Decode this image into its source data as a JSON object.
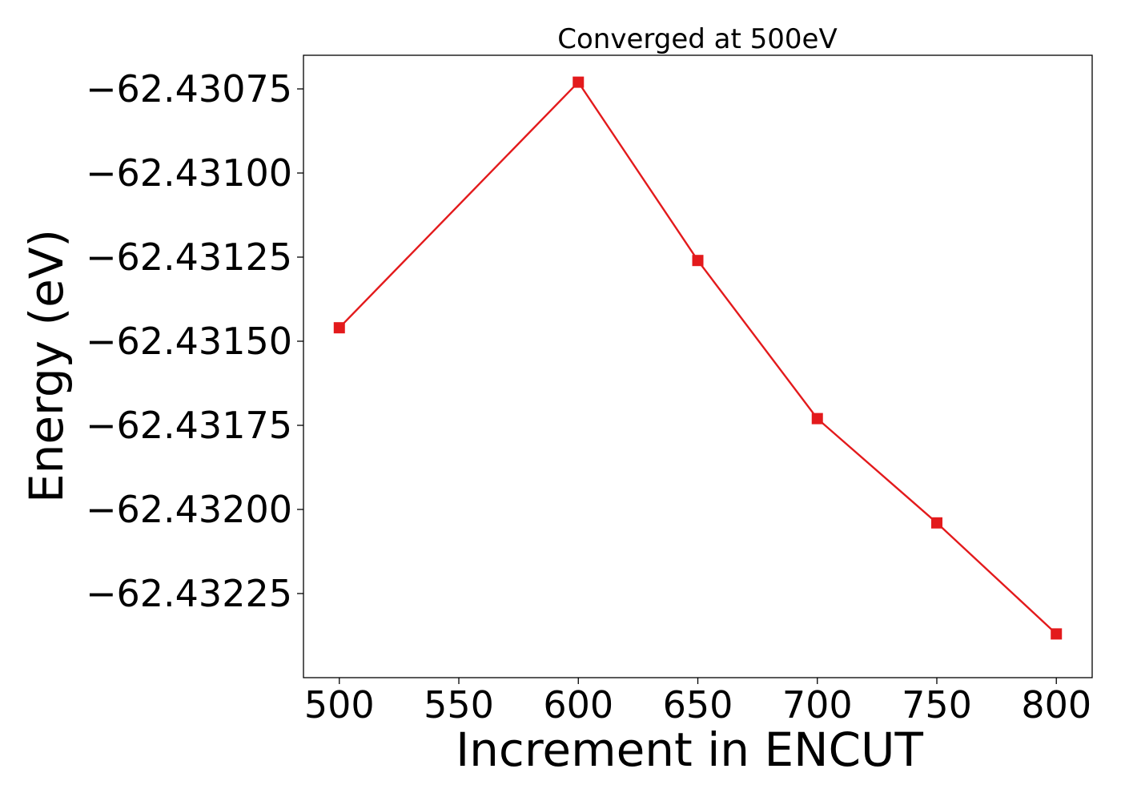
{
  "chart_data": {
    "type": "line",
    "title": "Converged at 500eV",
    "xlabel": "Increment in ENCUT",
    "ylabel": "Energy (eV)",
    "x": [
      500,
      600,
      650,
      700,
      750,
      800
    ],
    "series": [
      {
        "values": [
          -62.43146,
          -62.43073,
          -62.43126,
          -62.43173,
          -62.43204,
          -62.43237
        ],
        "color": "#e31a1c",
        "marker": "square"
      }
    ],
    "xlim": [
      485,
      815
    ],
    "ylim": [
      -62.4325,
      -62.43065
    ],
    "x_ticks": [
      500,
      550,
      600,
      650,
      700,
      750,
      800
    ],
    "x_tick_labels": [
      "500",
      "550",
      "600",
      "650",
      "700",
      "750",
      "800"
    ],
    "y_ticks": [
      -62.43075,
      -62.431,
      -62.43125,
      -62.4315,
      -62.43175,
      -62.432,
      -62.43225
    ],
    "y_tick_labels": [
      "−62.43075",
      "−62.43100",
      "−62.43125",
      "−62.43150",
      "−62.43175",
      "−62.43200",
      "−62.43225"
    ],
    "grid": false,
    "legend": "none"
  }
}
